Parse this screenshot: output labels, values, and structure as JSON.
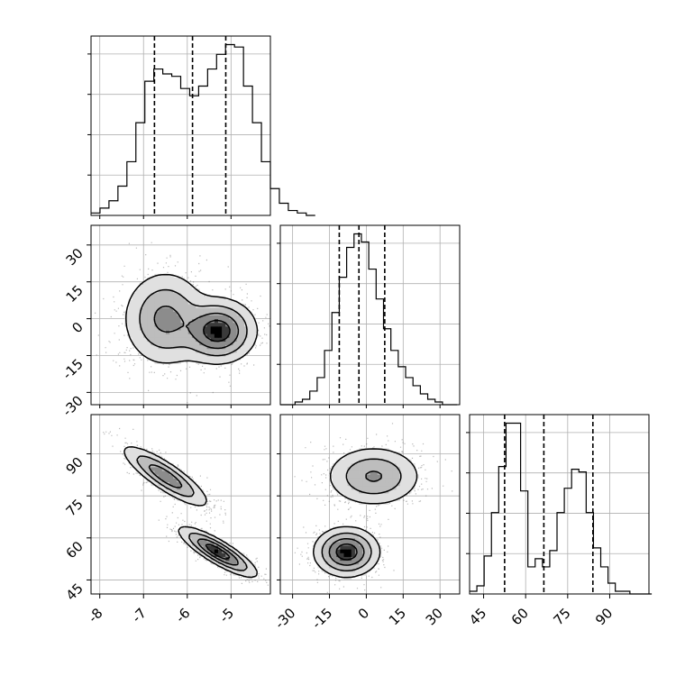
{
  "chart_data": {
    "type": "corner",
    "description_free": true,
    "params": [
      {
        "ticks": [
          -8,
          -7,
          -6,
          -5
        ],
        "range": [
          -8.2,
          -4.1
        ],
        "quantiles": [
          -6.75,
          -5.88,
          -5.12
        ],
        "hist_edges_start": -8.2,
        "hist_bin_width": 0.205,
        "hist_counts": [
          1,
          3,
          6,
          12,
          22,
          38,
          55,
          60,
          58,
          57,
          52,
          49,
          53,
          60,
          66,
          70,
          69,
          53,
          38,
          22,
          11,
          5,
          2,
          1,
          0
        ]
      },
      {
        "ticks": [
          -30,
          -15,
          0,
          15,
          30
        ],
        "range": [
          -35,
          38
        ],
        "quantiles": [
          -11,
          -3,
          7.5
        ],
        "hist_edges_start": -35,
        "hist_bin_width": 3.0,
        "hist_counts": [
          0,
          0,
          1,
          2,
          5,
          10,
          20,
          34,
          47,
          58,
          63,
          60,
          50,
          39,
          28,
          20,
          14,
          10,
          7,
          4,
          2,
          1,
          0,
          0
        ]
      },
      {
        "ticks": [
          45,
          60,
          75,
          90
        ],
        "range": [
          40,
          104
        ],
        "quantiles": [
          52.5,
          66.5,
          84
        ],
        "hist_edges_start": 40,
        "hist_bin_width": 2.6,
        "hist_counts": [
          1,
          3,
          14,
          30,
          47,
          63,
          63,
          38,
          10,
          13,
          10,
          16,
          30,
          39,
          46,
          45,
          30,
          17,
          10,
          4,
          1,
          1,
          0,
          0,
          0
        ]
      }
    ],
    "blobs": [
      {
        "px": 0,
        "py": 1,
        "components": [
          {
            "cx": -6.5,
            "cy": 0,
            "sx": 0.45,
            "sy": 9,
            "rho": 0,
            "w": 0.5
          },
          {
            "cx": -5.3,
            "cy": -5,
            "sx": 0.4,
            "sy": 6,
            "rho": 0,
            "w": 0.5
          }
        ]
      },
      {
        "px": 0,
        "py": 2,
        "components": [
          {
            "cx": -6.5,
            "cy": 82,
            "sx": 0.45,
            "sy": 5,
            "rho": -0.85,
            "w": 0.5
          },
          {
            "cx": -5.3,
            "cy": 55,
            "sx": 0.4,
            "sy": 4,
            "rho": -0.85,
            "w": 0.5
          }
        ]
      },
      {
        "px": 1,
        "py": 2,
        "components": [
          {
            "cx": 3,
            "cy": 82,
            "sx": 9,
            "sy": 5,
            "rho": 0,
            "w": 0.5
          },
          {
            "cx": -8,
            "cy": 55,
            "sx": 6,
            "sy": 4,
            "rho": 0,
            "w": 0.5
          }
        ]
      }
    ],
    "grid": true,
    "legend": ""
  }
}
